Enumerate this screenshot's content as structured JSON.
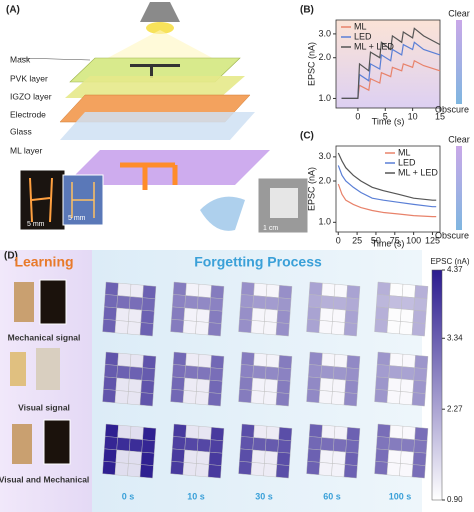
{
  "illustration": {
    "label": "(A)",
    "layers": [
      "Mask",
      "PVK layer",
      "IGZO layer",
      "Electrode",
      "Glass",
      "ML layer"
    ],
    "scale_bars": [
      "5 mm",
      "5 mm",
      "1 cm"
    ]
  },
  "chart_data": [
    {
      "type": "line",
      "label": "(B)",
      "xlabel": "Time (s)",
      "ylabel": "EPSC (nA)",
      "log_y": true,
      "legend": "upper left",
      "x": [
        -3,
        0,
        0.3,
        2,
        2.3,
        4,
        4.3,
        6,
        6.3,
        8,
        8.3,
        10,
        10.3,
        12,
        15
      ],
      "series": [
        {
          "name": "ML",
          "color": "#e8826a",
          "values": [
            1.0,
            1.0,
            1.25,
            1.15,
            1.4,
            1.3,
            1.55,
            1.45,
            1.7,
            1.6,
            1.8,
            1.7,
            1.9,
            1.75,
            1.6
          ]
        },
        {
          "name": "LED",
          "color": "#5a7fd6",
          "values": [
            1.0,
            1.0,
            1.5,
            1.35,
            1.8,
            1.65,
            2.1,
            1.9,
            2.3,
            2.1,
            2.5,
            2.3,
            2.6,
            2.3,
            2.1
          ]
        },
        {
          "name": "ML + LED",
          "color": "#555555",
          "values": [
            1.0,
            1.0,
            1.8,
            1.6,
            2.2,
            2.0,
            2.6,
            2.3,
            2.9,
            2.6,
            3.1,
            2.8,
            3.3,
            2.9,
            2.5
          ]
        }
      ],
      "xlim": [
        -4,
        15
      ],
      "xticks": [
        0,
        5,
        10,
        15
      ],
      "ylim": [
        0.85,
        3.8
      ],
      "yticks": [
        {
          "value": 1,
          "label": "1.0"
        },
        {
          "value": 2,
          "label": "2.0"
        },
        {
          "value": 3,
          "label": "3.0"
        }
      ],
      "colorbar_labels": [
        "Clear",
        "Obscure"
      ]
    },
    {
      "type": "line",
      "label": "(C)",
      "xlabel": "Time (s)",
      "ylabel": "EPSC (nA)",
      "log_y": true,
      "legend": "upper right",
      "x": [
        0,
        5,
        10,
        20,
        30,
        45,
        60,
        80,
        100,
        125,
        130
      ],
      "series": [
        {
          "name": "ML",
          "color": "#e8826a",
          "values": [
            1.9,
            1.6,
            1.45,
            1.35,
            1.28,
            1.22,
            1.18,
            1.15,
            1.12,
            1.1,
            1.1
          ]
        },
        {
          "name": "LED",
          "color": "#5a7fd6",
          "values": [
            2.6,
            2.2,
            2.0,
            1.8,
            1.65,
            1.5,
            1.45,
            1.4,
            1.35,
            1.3,
            1.3
          ]
        },
        {
          "name": "ML + LED",
          "color": "#555555",
          "values": [
            3.2,
            2.8,
            2.5,
            2.2,
            2.0,
            1.8,
            1.7,
            1.6,
            1.5,
            1.45,
            1.45
          ]
        }
      ],
      "xlim": [
        -3,
        135
      ],
      "xticks": [
        0,
        25,
        50,
        75,
        100,
        125
      ],
      "ylim": [
        0.85,
        3.6
      ],
      "yticks": [
        {
          "value": 1,
          "label": "1.0"
        },
        {
          "value": 2,
          "label": "2.0"
        },
        {
          "value": 3,
          "label": "3.0"
        }
      ],
      "colorbar_labels": [
        "Clear",
        "Obscure"
      ]
    },
    {
      "type": "heatmap",
      "label": "(D)",
      "headers": [
        "Learning",
        "Forgetting Process"
      ],
      "rows": [
        "Mechanical signal",
        "Visual signal",
        "Visual and Mechanical"
      ],
      "columns": [
        "0 s",
        "10 s",
        "30 s",
        "60 s",
        "100 s"
      ],
      "colorbar_title": "EPSC (nA)",
      "zlim": [
        0.9,
        4.37
      ],
      "zticks": [
        4.37,
        3.34,
        2.27,
        {
          "value": 0.9,
          "label": "0.90"
        }
      ],
      "maps": [
        [
          [
            [
              3.3,
              1.2,
              1.2,
              3.3
            ],
            [
              3.2,
              3.1,
              3.1,
              3.2
            ],
            [
              3.3,
              1.2,
              1.2,
              3.3
            ],
            [
              3.3,
              1.2,
              1.2,
              3.3
            ]
          ],
          [
            [
              2.9,
              1.1,
              1.1,
              2.9
            ],
            [
              2.8,
              2.7,
              2.7,
              2.8
            ],
            [
              2.9,
              1.1,
              1.1,
              2.9
            ],
            [
              2.9,
              1.1,
              1.1,
              2.9
            ]
          ],
          [
            [
              2.6,
              1.05,
              1.05,
              2.6
            ],
            [
              2.5,
              2.4,
              2.4,
              2.5
            ],
            [
              2.6,
              1.05,
              1.05,
              2.6
            ],
            [
              2.6,
              1.05,
              1.05,
              2.6
            ]
          ],
          [
            [
              2.3,
              1.0,
              1.0,
              2.3
            ],
            [
              2.2,
              2.1,
              2.1,
              2.2
            ],
            [
              2.3,
              1.0,
              1.0,
              2.3
            ],
            [
              2.3,
              1.0,
              1.0,
              2.3
            ]
          ],
          [
            [
              2.1,
              0.95,
              0.95,
              2.1
            ],
            [
              2.0,
              1.9,
              1.9,
              2.0
            ],
            [
              2.1,
              0.95,
              0.95,
              2.1
            ],
            [
              2.1,
              0.95,
              0.95,
              2.1
            ]
          ]
        ],
        [
          [
            [
              3.5,
              1.3,
              1.3,
              3.5
            ],
            [
              3.4,
              3.3,
              3.3,
              3.4
            ],
            [
              3.5,
              1.3,
              1.3,
              3.5
            ],
            [
              3.5,
              1.3,
              1.3,
              3.5
            ]
          ],
          [
            [
              3.2,
              1.2,
              1.2,
              3.2
            ],
            [
              3.1,
              3.0,
              3.0,
              3.1
            ],
            [
              3.2,
              1.2,
              1.2,
              3.2
            ],
            [
              3.2,
              1.2,
              1.2,
              3.2
            ]
          ],
          [
            [
              2.9,
              1.1,
              1.1,
              2.9
            ],
            [
              2.8,
              2.7,
              2.7,
              2.8
            ],
            [
              2.9,
              1.1,
              1.1,
              2.9
            ],
            [
              2.9,
              1.1,
              1.1,
              2.9
            ]
          ],
          [
            [
              2.7,
              1.05,
              1.05,
              2.7
            ],
            [
              2.6,
              2.5,
              2.5,
              2.6
            ],
            [
              2.7,
              1.05,
              1.05,
              2.7
            ],
            [
              2.7,
              1.05,
              1.05,
              2.7
            ]
          ],
          [
            [
              2.5,
              1.0,
              1.0,
              2.5
            ],
            [
              2.4,
              2.3,
              2.3,
              2.4
            ],
            [
              2.5,
              1.0,
              1.0,
              2.5
            ],
            [
              2.5,
              1.0,
              1.0,
              2.5
            ]
          ]
        ],
        [
          [
            [
              4.3,
              1.4,
              1.4,
              4.3
            ],
            [
              4.2,
              4.1,
              4.1,
              4.2
            ],
            [
              4.3,
              1.4,
              1.4,
              4.3
            ],
            [
              4.3,
              1.4,
              1.4,
              4.3
            ]
          ],
          [
            [
              3.9,
              1.3,
              1.3,
              3.9
            ],
            [
              3.8,
              3.7,
              3.7,
              3.8
            ],
            [
              3.9,
              1.3,
              1.3,
              3.9
            ],
            [
              3.9,
              1.3,
              1.3,
              3.9
            ]
          ],
          [
            [
              3.6,
              1.2,
              1.2,
              3.6
            ],
            [
              3.5,
              3.4,
              3.4,
              3.5
            ],
            [
              3.6,
              1.2,
              1.2,
              3.6
            ],
            [
              3.6,
              1.2,
              1.2,
              3.6
            ]
          ],
          [
            [
              3.3,
              1.1,
              1.1,
              3.3
            ],
            [
              3.2,
              3.1,
              3.1,
              3.2
            ],
            [
              3.3,
              1.1,
              1.1,
              3.3
            ],
            [
              3.3,
              1.1,
              1.1,
              3.3
            ]
          ],
          [
            [
              3.1,
              1.0,
              1.0,
              3.1
            ],
            [
              3.0,
              2.9,
              2.9,
              3.0
            ],
            [
              3.1,
              1.0,
              1.0,
              3.1
            ],
            [
              3.1,
              1.0,
              1.0,
              3.1
            ]
          ]
        ]
      ]
    }
  ]
}
